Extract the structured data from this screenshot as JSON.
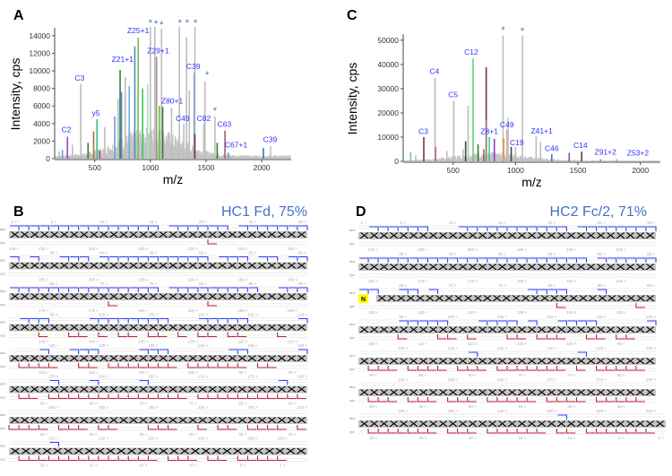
{
  "chart_data": [
    {
      "panel": "A",
      "type": "bar",
      "xlabel": "m/z",
      "ylabel": "Intensity, cps",
      "xlim": [
        140,
        2265
      ],
      "ylim": [
        0,
        14700
      ],
      "xticks": [
        500,
        1000,
        1500,
        2000
      ],
      "yticks": [
        0,
        2000,
        4000,
        6000,
        8000,
        10000,
        12000,
        14000
      ],
      "grid": false,
      "background_envelope_peak_mz": 1000,
      "background_envelope_max": 3300,
      "peaks": [
        {
          "mz": 180,
          "y": 800,
          "color": "#bdbdbd"
        },
        {
          "mz": 210,
          "y": 1000,
          "color": "#6a9fd8"
        },
        {
          "mz": 255,
          "y": 2500,
          "color": "#a040c0",
          "label": "C2",
          "label_mz": 245,
          "label_y": 3000
        },
        {
          "mz": 300,
          "y": 1600,
          "color": "#bdbdbd"
        },
        {
          "mz": 375,
          "y": 8500,
          "color": "#bdbdbd",
          "label": "C3",
          "label_mz": 365,
          "label_y": 8900
        },
        {
          "mz": 440,
          "y": 1800,
          "color": "#3a7a3a"
        },
        {
          "mz": 490,
          "y": 3100,
          "color": "#a07830"
        },
        {
          "mz": 520,
          "y": 4500,
          "color": "#40c080",
          "label": "y5",
          "label_mz": 510,
          "label_y": 4900
        },
        {
          "mz": 545,
          "y": 900,
          "color": "#a040c0"
        },
        {
          "mz": 590,
          "y": 3600,
          "color": "#bdbdbd"
        },
        {
          "mz": 680,
          "y": 4800,
          "color": "#6a9fd8"
        },
        {
          "mz": 710,
          "y": 6800,
          "color": "#bdbdbd"
        },
        {
          "mz": 728,
          "y": 10100,
          "color": "#308030",
          "label": "Z21+1",
          "label_mz": 750,
          "label_y": 11000
        },
        {
          "mz": 740,
          "y": 7600,
          "color": "#4a8ad0"
        },
        {
          "mz": 775,
          "y": 9300,
          "color": "#bdbdbd"
        },
        {
          "mz": 810,
          "y": 8300,
          "color": "#6aaee0"
        },
        {
          "mz": 860,
          "y": 12800,
          "color": "#4a8ad0"
        },
        {
          "mz": 890,
          "y": 13800,
          "color": "#7cc040",
          "label": "Z25+1",
          "label_mz": 890,
          "label_y": 14300
        },
        {
          "mz": 930,
          "y": 8000,
          "color": "#40c070"
        },
        {
          "mz": 975,
          "y": 8500,
          "color": "#a0e0c0"
        },
        {
          "mz": 1000,
          "y": 15000,
          "color": "#bdbdbd",
          "label": "*",
          "label_mz": 1000,
          "label_y": 15100
        },
        {
          "mz": 1040,
          "y": 15000,
          "color": "#bdbdbd",
          "label": "*",
          "label_mz": 1050,
          "label_y": 15000
        },
        {
          "mz": 1055,
          "y": 11600,
          "color": "#a09090",
          "label": "Z29+1",
          "label_mz": 1070,
          "label_y": 12000
        },
        {
          "mz": 1080,
          "y": 6000,
          "color": "#60c040"
        },
        {
          "mz": 1100,
          "y": 14800,
          "color": "#bdbdbd",
          "label": "*",
          "label_mz": 1100,
          "label_y": 14900
        },
        {
          "mz": 1110,
          "y": 5900,
          "color": "#308030",
          "label": "Z80+1",
          "label_mz": 1195,
          "label_y": 6300
        },
        {
          "mz": 1190,
          "y": 5800,
          "color": "#bdbdbd"
        },
        {
          "mz": 1260,
          "y": 15000,
          "color": "#bdbdbd",
          "label": "*",
          "label_mz": 1265,
          "label_y": 15100
        },
        {
          "mz": 1300,
          "y": 4000,
          "color": "#bdbdbd",
          "label": "C49",
          "label_mz": 1290,
          "label_y": 4300
        },
        {
          "mz": 1325,
          "y": 13800,
          "color": "#bdbdbd",
          "label": "*",
          "label_mz": 1330,
          "label_y": 15100
        },
        {
          "mz": 1350,
          "y": 7800,
          "color": "#bdbdbd"
        },
        {
          "mz": 1395,
          "y": 9800,
          "color": "#3a70d0",
          "label": "C39",
          "label_mz": 1385,
          "label_y": 10200
        },
        {
          "mz": 1400,
          "y": 15000,
          "color": "#bdbdbd",
          "label": "*",
          "label_mz": 1405,
          "label_y": 15100
        },
        {
          "mz": 1400,
          "y": 2800,
          "color": "#904040"
        },
        {
          "mz": 1480,
          "y": 4000,
          "color": "#bdbdbd",
          "label": "C82",
          "label_mz": 1480,
          "label_y": 4300
        },
        {
          "mz": 1490,
          "y": 8800,
          "color": "#bdbdbd",
          "label": "*",
          "label_mz": 1510,
          "label_y": 9200
        },
        {
          "mz": 1580,
          "y": 4800,
          "color": "#bdbdbd",
          "label": "*",
          "label_mz": 1580,
          "label_y": 5100
        },
        {
          "mz": 1600,
          "y": 1800,
          "color": "#308030"
        },
        {
          "mz": 1670,
          "y": 3200,
          "color": "#a06070",
          "label": "C63",
          "label_mz": 1665,
          "label_y": 3600
        },
        {
          "mz": 1700,
          "y": 700,
          "color": "#6a9fd8",
          "label": "C67+1",
          "label_mz": 1770,
          "label_y": 1300
        },
        {
          "mz": 2015,
          "y": 1200,
          "color": "#3a70d0"
        },
        {
          "mz": 2080,
          "y": 1400,
          "color": "#bdbdbd",
          "label": "C39",
          "label_mz": 2075,
          "label_y": 1900
        }
      ]
    },
    {
      "panel": "C",
      "type": "bar",
      "xlabel": "m/z",
      "ylabel": "Intensity, cps",
      "xlim": [
        100,
        2160
      ],
      "ylim": [
        0,
        51800
      ],
      "xticks": [
        500,
        1000,
        1500,
        2000
      ],
      "yticks": [
        0,
        10000,
        20000,
        30000,
        40000,
        50000
      ],
      "grid": false,
      "background_envelope_peak_mz": 800,
      "background_envelope_max": 3500,
      "peaks": [
        {
          "mz": 160,
          "y": 3800,
          "color": "#6ac0d0"
        },
        {
          "mz": 200,
          "y": 2500,
          "color": "#bdbdbd"
        },
        {
          "mz": 265,
          "y": 10000,
          "color": "#803040",
          "label": "C3",
          "label_mz": 262,
          "label_y": 11200
        },
        {
          "mz": 355,
          "y": 34500,
          "color": "#bdbdbd",
          "label": "C4",
          "label_mz": 350,
          "label_y": 36000
        },
        {
          "mz": 360,
          "y": 6000,
          "color": "#d06080"
        },
        {
          "mz": 450,
          "y": 4200,
          "color": "#bdbdbd"
        },
        {
          "mz": 505,
          "y": 25000,
          "color": "#bdbdbd",
          "label": "C5",
          "label_mz": 500,
          "label_y": 26500
        },
        {
          "mz": 580,
          "y": 5000,
          "color": "#bdbdbd"
        },
        {
          "mz": 600,
          "y": 8300,
          "color": "#305030"
        },
        {
          "mz": 620,
          "y": 23000,
          "color": "#bdbdbd"
        },
        {
          "mz": 660,
          "y": 42500,
          "color": "#60d080",
          "label": "C12",
          "label_mz": 645,
          "label_y": 44000
        },
        {
          "mz": 700,
          "y": 7000,
          "color": "#308030"
        },
        {
          "mz": 745,
          "y": 5000,
          "color": "#a06040"
        },
        {
          "mz": 765,
          "y": 38800,
          "color": "#803030"
        },
        {
          "mz": 770,
          "y": 17000,
          "color": "#bdbdbd"
        },
        {
          "mz": 790,
          "y": 10000,
          "color": "#40d090",
          "label": "Z8+1",
          "label_mz": 790,
          "label_y": 11200
        },
        {
          "mz": 830,
          "y": 9300,
          "color": "#9040c0"
        },
        {
          "mz": 900,
          "y": 52000,
          "color": "#bdbdbd",
          "label": "*",
          "label_mz": 900,
          "label_y": 53000
        },
        {
          "mz": 905,
          "y": 9500,
          "color": "#d0a030"
        },
        {
          "mz": 930,
          "y": 13000,
          "color": "#e0a0b0",
          "label": "C49",
          "label_mz": 930,
          "label_y": 14000
        },
        {
          "mz": 940,
          "y": 18000,
          "color": "#bdbdbd"
        },
        {
          "mz": 965,
          "y": 6000,
          "color": "#305030"
        },
        {
          "mz": 1000,
          "y": 6000,
          "color": "#bdbdbd",
          "label": "C19",
          "label_mz": 1010,
          "label_y": 6600
        },
        {
          "mz": 1055,
          "y": 52000,
          "color": "#bdbdbd",
          "label": "*",
          "label_mz": 1055,
          "label_y": 52500
        },
        {
          "mz": 1165,
          "y": 10500,
          "color": "#bdbdbd",
          "label": "Z41+1",
          "label_mz": 1210,
          "label_y": 11500
        },
        {
          "mz": 1200,
          "y": 8000,
          "color": "#bdbdbd"
        },
        {
          "mz": 1290,
          "y": 3000,
          "color": "#4070d0",
          "label": "C46",
          "label_mz": 1290,
          "label_y": 4300
        },
        {
          "mz": 1430,
          "y": 3500,
          "color": "#9040c0"
        },
        {
          "mz": 1530,
          "y": 4000,
          "color": "#803030",
          "label": "C14",
          "label_mz": 1520,
          "label_y": 5500
        },
        {
          "mz": 1680,
          "y": 900,
          "color": "#d06080",
          "label": "Z91+2",
          "label_mz": 1720,
          "label_y": 2700
        },
        {
          "mz": 1810,
          "y": 900,
          "color": "#6ac0d0"
        },
        {
          "mz": 1950,
          "y": 300,
          "color": "#bdbdbd",
          "label": "Z53+2",
          "label_mz": 1980,
          "label_y": 2400
        }
      ]
    }
  ],
  "panels": {
    "A": {
      "letter": "A"
    },
    "B": {
      "letter": "B",
      "title": "HC1 Fd, 75%"
    },
    "C": {
      "letter": "C"
    },
    "D": {
      "letter": "D",
      "title": "HC2 Fc/2, 71%"
    }
  },
  "sequence_maps": {
    "residue_char": "X",
    "ion_labels_top": "abc",
    "ion_labels_bottom": "xyz",
    "c_ion_color": "#3040ff",
    "z_ion_color": "#c02040",
    "B": {
      "total": 238,
      "rows": [
        {
          "start": 1,
          "len": 30,
          "top": [
            1,
            5,
            10,
            15,
            20,
            25,
            30
          ],
          "bottom": [
            238,
            235,
            230,
            225,
            220,
            215,
            210
          ],
          "c": "111111111111111011111101111111",
          "z": "000000000000000000001000000000"
        },
        {
          "start": 31,
          "len": 30,
          "top": [
            35,
            40,
            45,
            50,
            55,
            60
          ],
          "bottom": [
            205,
            200,
            195,
            190,
            185,
            180
          ],
          "c": "101001110111111111110111011011",
          "z": "000000000000000000000000000000"
        },
        {
          "start": 61,
          "len": 30,
          "top": [
            65,
            70,
            75,
            80,
            85,
            90
          ],
          "bottom": [
            175,
            170,
            165,
            160,
            155,
            150
          ],
          "c": "111111111111111011111111100111",
          "z": "000000000010000000001000000000"
        },
        {
          "start": 91,
          "len": 30,
          "top": [
            95,
            100,
            105,
            110,
            115,
            120
          ],
          "bottom": [
            145,
            140,
            135,
            130,
            125,
            120
          ],
          "c": "011100001111111100011111000001",
          "z": "000100110101101101011011000100"
        },
        {
          "start": 121,
          "len": 30,
          "top": [
            125,
            130,
            135,
            140,
            145,
            150
          ],
          "bottom": [
            115,
            110,
            105,
            100,
            95,
            90
          ],
          "c": "000100111000011100000011000001",
          "z": "011110011011111110111111011000"
        },
        {
          "start": 151,
          "len": 30,
          "top": [
            155,
            160,
            165,
            170,
            175,
            180
          ],
          "bottom": [
            85,
            80,
            75,
            70,
            65,
            60
          ],
          "c": "000010001000010000000000000100",
          "z": "011011111111111111011111111111"
        },
        {
          "start": 181,
          "len": 30,
          "top": [
            185,
            190,
            195,
            200,
            205,
            210
          ],
          "bottom": [
            55,
            50,
            45,
            40,
            35,
            30
          ],
          "c": "000000000000000000000000000000",
          "z": "111101110110001110010110111101"
        },
        {
          "start": 211,
          "len": 28,
          "top": [
            215,
            220,
            225,
            230,
            235,
            238
          ],
          "bottom": [
            25,
            20,
            15,
            10,
            5,
            1
          ],
          "c": "000010000000000000000000000000",
          "z": "0111111111111110111011011111"
        }
      ]
    },
    "D": {
      "total": 211,
      "pyro_residue": "N",
      "rows": [
        {
          "start": 1,
          "len": 30,
          "top": [
            1,
            5,
            10,
            15,
            20,
            25,
            30
          ],
          "bottom": [
            210,
            205,
            200,
            195,
            190,
            185
          ],
          "c": "011111100011111111111011111111",
          "z": "000000000000000000000000000000"
        },
        {
          "start": 31,
          "len": 30,
          "top": [
            35,
            40,
            45,
            50,
            55,
            60
          ],
          "bottom": [
            180,
            175,
            170,
            165,
            160,
            155
          ],
          "c": "111111111111111111111110111111",
          "z": "000000000000000000000000000000"
        },
        {
          "start": 61,
          "len": 30,
          "top": [
            65,
            70,
            75,
            80,
            85,
            90
          ],
          "bottom": [
            150,
            145,
            140,
            135,
            130,
            125
          ],
          "c": "110011010000000001111000100000",
          "z": "000000000000000000001000000010"
        },
        {
          "start": 91,
          "len": 30,
          "top": [
            95,
            100,
            105,
            110,
            115,
            120
          ],
          "bottom": [
            120,
            115,
            110,
            105,
            100,
            95
          ],
          "c": "000011111000111101001111000001",
          "z": "000010001101000110111001101100"
        },
        {
          "start": 121,
          "len": 30,
          "top": [
            125,
            130,
            135,
            140,
            145,
            150
          ],
          "bottom": [
            90,
            85,
            80,
            75,
            70,
            65
          ],
          "c": "000000000001000000000010000000",
          "z": "011101111011101111111010111110"
        },
        {
          "start": 151,
          "len": 30,
          "top": [
            155,
            160,
            165,
            170,
            175,
            180
          ],
          "bottom": [
            60,
            55,
            50,
            45,
            40,
            35
          ],
          "c": "000000000000000000000000000000",
          "z": "011101110111011111011110111110"
        },
        {
          "start": 181,
          "len": 31,
          "top": [
            185,
            190,
            195,
            200,
            205,
            210
          ],
          "bottom": [
            30,
            25,
            20,
            15,
            10,
            5,
            1
          ],
          "c": "0000000000000000000010000000000",
          "z": "0111111101110111111011011111110"
        }
      ]
    }
  }
}
